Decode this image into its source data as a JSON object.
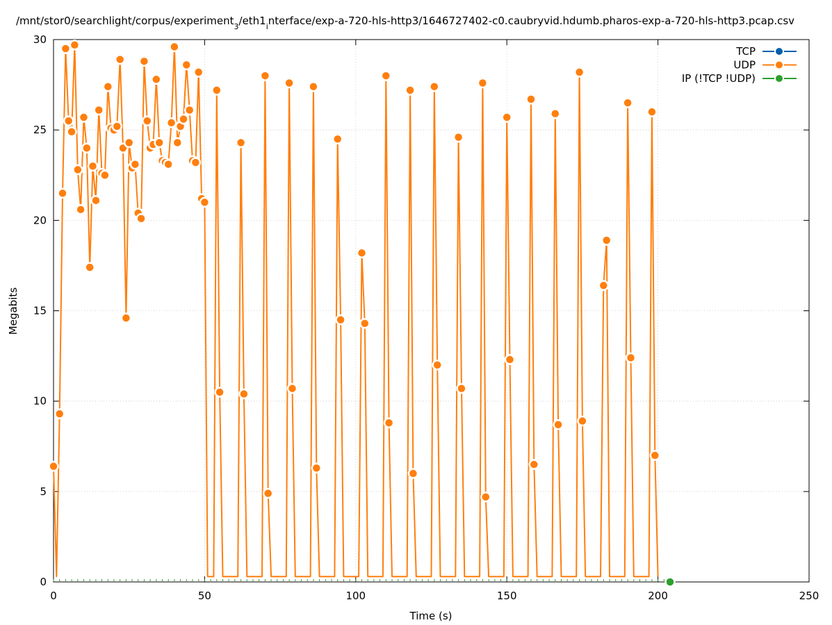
{
  "chart_data": {
    "type": "line",
    "title": "/mnt/stor0/searchlight/corpus/experiment_3/eth1_interface/exp-a-720-hls-http3/1646727402-c0.caubryvid.hdumb.pharos-exp-a-720-hls-http3.pcap.csv",
    "xlabel": "Time (s)",
    "ylabel": "Megabits",
    "xlim": [
      0,
      250
    ],
    "ylim": [
      0,
      30
    ],
    "xticks": [
      0,
      50,
      100,
      150,
      200,
      250
    ],
    "yticks": [
      0,
      5,
      10,
      15,
      20,
      25,
      30
    ],
    "grid": true,
    "legend_position": "top-right",
    "series": [
      {
        "name": "TCP",
        "color": "#0060ad",
        "x": [],
        "y": []
      },
      {
        "name": "UDP",
        "color": "#ff7f0e",
        "x": [
          0,
          1,
          2,
          3,
          4,
          5,
          6,
          7,
          8,
          9,
          10,
          11,
          12,
          13,
          14,
          15,
          16,
          17,
          18,
          19,
          20,
          21,
          22,
          23,
          24,
          25,
          26,
          27,
          28,
          29,
          30,
          31,
          32,
          33,
          34,
          35,
          36,
          37,
          38,
          39,
          40,
          41,
          42,
          43,
          44,
          45,
          46,
          47,
          48,
          49,
          50,
          51,
          53,
          54,
          55,
          56,
          61,
          62,
          63,
          64,
          69,
          70,
          71,
          72,
          77,
          78,
          79,
          80,
          85,
          86,
          87,
          88,
          93,
          94,
          95,
          96,
          101,
          102,
          103,
          104,
          109,
          110,
          111,
          112,
          117,
          118,
          119,
          120,
          125,
          126,
          127,
          128,
          133,
          134,
          135,
          136,
          141,
          142,
          143,
          144,
          149,
          150,
          151,
          152,
          157,
          158,
          159,
          160,
          165,
          166,
          167,
          168,
          173,
          174,
          175,
          176,
          181,
          182,
          183,
          184,
          189,
          190,
          191,
          192,
          197,
          198,
          199,
          200
        ],
        "y": [
          6.4,
          0.3,
          9.3,
          21.5,
          29.5,
          25.5,
          24.9,
          29.7,
          22.8,
          20.6,
          25.7,
          24.0,
          17.4,
          23.0,
          21.1,
          26.1,
          22.6,
          22.5,
          27.4,
          25.1,
          25.0,
          25.2,
          28.9,
          24.0,
          14.6,
          24.3,
          22.9,
          23.1,
          20.4,
          20.1,
          28.8,
          25.5,
          24.0,
          24.2,
          27.8,
          24.3,
          23.3,
          23.2,
          23.1,
          25.4,
          29.6,
          24.3,
          25.2,
          25.6,
          28.6,
          26.1,
          23.3,
          23.2,
          28.2,
          21.2,
          21.0,
          0.3,
          0.3,
          27.2,
          10.5,
          0.3,
          0.3,
          24.3,
          10.4,
          0.3,
          0.3,
          28.0,
          4.9,
          0.3,
          0.3,
          27.6,
          10.7,
          0.3,
          0.3,
          27.4,
          6.3,
          0.3,
          0.3,
          24.5,
          14.5,
          0.3,
          0.3,
          18.2,
          14.3,
          0.3,
          0.3,
          28.0,
          8.8,
          0.3,
          0.3,
          27.2,
          6.0,
          0.3,
          0.3,
          27.4,
          12.0,
          0.3,
          0.3,
          24.6,
          10.7,
          0.3,
          0.3,
          27.6,
          4.7,
          0.3,
          0.3,
          25.7,
          12.3,
          0.3,
          0.3,
          26.7,
          6.5,
          0.3,
          0.3,
          25.9,
          8.7,
          0.3,
          0.3,
          28.2,
          8.9,
          0.3,
          0.3,
          16.4,
          18.9,
          0.3,
          0.3,
          26.5,
          12.4,
          0.3,
          0.3,
          26.0,
          7.0,
          0.3
        ],
        "marker_indices": [
          0,
          2,
          3,
          4,
          5,
          6,
          7,
          8,
          9,
          10,
          11,
          12,
          13,
          14,
          15,
          16,
          17,
          18,
          19,
          20,
          21,
          22,
          23,
          24,
          25,
          26,
          27,
          28,
          29,
          30,
          31,
          32,
          33,
          34,
          35,
          36,
          37,
          38,
          39,
          40,
          41,
          42,
          43,
          44,
          45,
          46,
          47,
          48,
          49,
          50,
          53,
          54,
          57,
          58,
          61,
          62,
          65,
          66,
          69,
          70,
          73,
          74,
          77,
          78,
          81,
          82,
          85,
          86,
          89,
          90,
          93,
          94,
          97,
          98,
          101,
          102,
          105,
          106,
          109,
          110,
          113,
          114,
          117,
          118,
          121,
          122,
          125,
          126
        ]
      },
      {
        "name": "IP (!TCP  !UDP)",
        "color": "#2ca02c",
        "x": [
          204
        ],
        "y": [
          0
        ]
      }
    ]
  }
}
